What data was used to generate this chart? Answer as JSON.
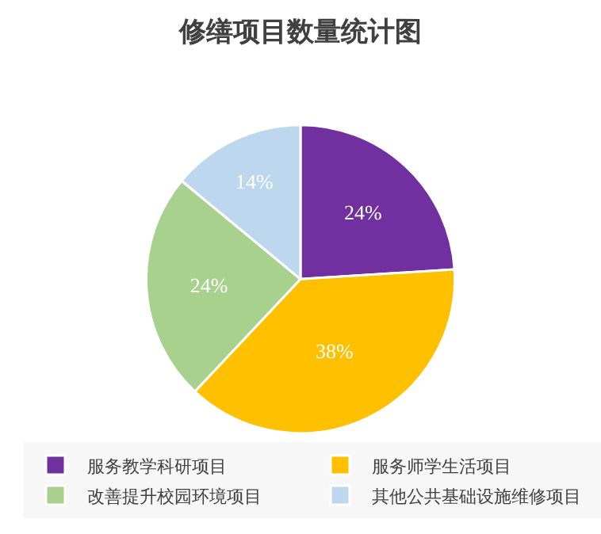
{
  "chart_data": {
    "type": "pie",
    "title": "修缮项目数量统计图",
    "categories": [
      "服务教学科研项目",
      "服务师学生活项目",
      "改善提升校园环境项目",
      "其他公共基础设施维修项目"
    ],
    "values": [
      24,
      38,
      24,
      14
    ],
    "colors": [
      "#7030a0",
      "#ffc000",
      "#a9d18e",
      "#bdd7ee"
    ],
    "value_labels": [
      "24%",
      "38%",
      "24%",
      "14%"
    ],
    "legend": "bottom"
  }
}
